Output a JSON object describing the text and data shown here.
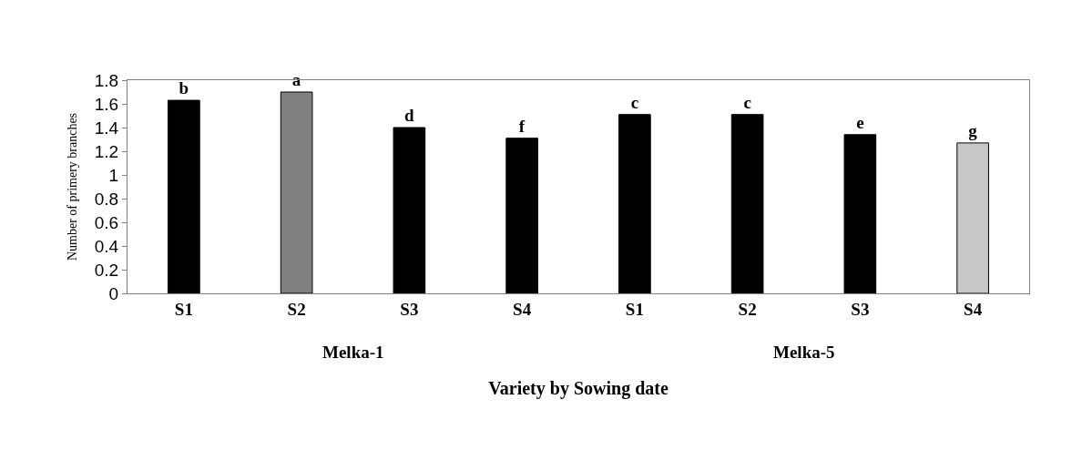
{
  "chart_data": {
    "type": "bar",
    "xlabel": "Variety by Sowing date",
    "ylabel": "Number of primery branches",
    "categories": [
      "S1",
      "S2",
      "S3",
      "S4",
      "S1",
      "S2",
      "S3",
      "S4"
    ],
    "values": [
      1.63,
      1.7,
      1.4,
      1.31,
      1.51,
      1.51,
      1.34,
      1.27
    ],
    "colors": [
      "#000000",
      "#7f7f7f",
      "#000000",
      "#000000",
      "#000000",
      "#000000",
      "#000000",
      "#c8c8c8"
    ],
    "value_labels": [
      "b",
      "a",
      "d",
      "f",
      "c",
      "c",
      "e",
      "g"
    ],
    "annotations": [
      "Melka-1",
      "Melka-5"
    ],
    "ylim": [
      0,
      1.8
    ],
    "yticks": [
      0,
      0.2,
      0.4,
      0.6,
      0.8,
      1,
      1.2,
      1.4,
      1.6,
      1.8
    ]
  }
}
